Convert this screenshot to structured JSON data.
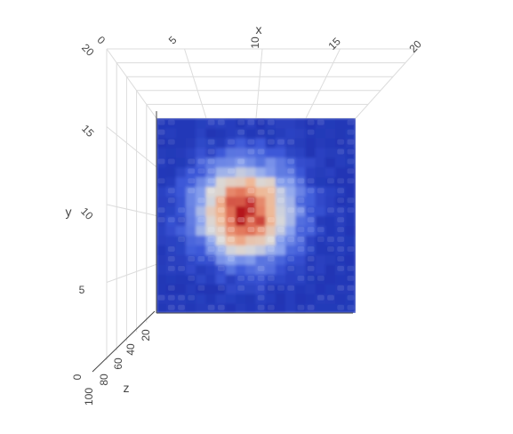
{
  "chart_data": {
    "type": "3d-surface",
    "title": "",
    "colorscale": [
      "#0d1c9b",
      "#3c58d8",
      "#8ea6ef",
      "#d9d9d9",
      "#efb896",
      "#e3775b",
      "#b5121b"
    ],
    "axes": {
      "x": {
        "label": "x",
        "ticks": [
          "5",
          "10",
          "15",
          "20"
        ],
        "range": [
          0,
          20
        ]
      },
      "y": {
        "label": "y",
        "ticks": [
          "5",
          "10",
          "15",
          "20"
        ],
        "range": [
          0,
          20
        ]
      },
      "z": {
        "label": "z",
        "ticks": [
          "0",
          "20",
          "40",
          "60",
          "80",
          "100"
        ],
        "range": [
          0,
          100
        ]
      }
    },
    "x_origin_label": "0",
    "surface": {
      "peak": {
        "x": 9,
        "y": 10.5,
        "z": 100
      },
      "grid_size": [
        20,
        20
      ],
      "base_level": 8
    },
    "grid": true
  }
}
